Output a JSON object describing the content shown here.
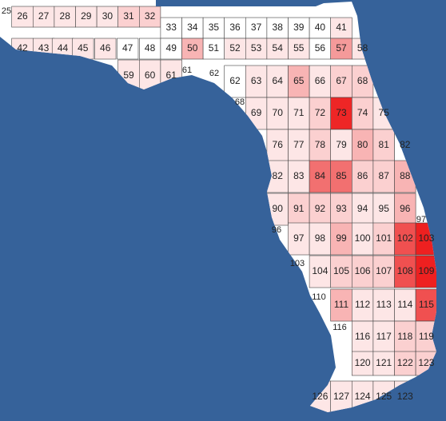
{
  "cells": [
    {
      "label": "25"
    },
    {
      "label": "26",
      "color": "#fde6e6"
    },
    {
      "label": "27",
      "color": "#fde6e6"
    },
    {
      "label": "28",
      "color": "#fde6e6"
    },
    {
      "label": "29",
      "color": "#fde6e6"
    },
    {
      "label": "30",
      "color": "#fde6e6"
    },
    {
      "label": "31",
      "color": "#fbd0d0"
    },
    {
      "label": "32",
      "color": "#fbd0d0"
    },
    {
      "label": "33",
      "color": "#ffffff"
    },
    {
      "label": "34",
      "color": "#ffffff"
    },
    {
      "label": "35",
      "color": "#ffffff"
    },
    {
      "label": "36",
      "color": "#ffffff"
    },
    {
      "label": "37",
      "color": "#ffffff"
    },
    {
      "label": "38",
      "color": "#ffffff"
    },
    {
      "label": "39",
      "color": "#ffffff"
    },
    {
      "label": "40",
      "color": "#ffffff"
    },
    {
      "label": "41",
      "color": "#fde6e6"
    },
    {
      "label": "42",
      "color": "#fde6e6"
    },
    {
      "label": "43",
      "color": "#fde6e6"
    },
    {
      "label": "44",
      "color": "#fde6e6"
    },
    {
      "label": "45",
      "color": "#fde6e6"
    },
    {
      "label": "46",
      "color": "#fde6e6"
    },
    {
      "label": "47",
      "color": "#ffffff"
    },
    {
      "label": "48",
      "color": "#ffffff"
    },
    {
      "label": "49",
      "color": "#ffffff"
    },
    {
      "label": "50",
      "color": "#f8b4b4"
    },
    {
      "label": "51",
      "color": "#ffffff"
    },
    {
      "label": "52",
      "color": "#fde6e6"
    },
    {
      "label": "53",
      "color": "#fde6e6"
    },
    {
      "label": "54",
      "color": "#fde6e6"
    },
    {
      "label": "55",
      "color": "#fde6e6"
    },
    {
      "label": "56",
      "color": "#ffffff"
    },
    {
      "label": "57",
      "color": "#f59a9a"
    },
    {
      "label": "58",
      "color": "#fde6e6"
    },
    {
      "label": "59",
      "color": "#fde6e6"
    },
    {
      "label": "60",
      "color": "#fde6e6"
    },
    {
      "label": "61",
      "color": "#fde6e6"
    },
    {
      "label": "61"
    },
    {
      "label": "62"
    },
    {
      "label": "62",
      "color": "#ffffff"
    },
    {
      "label": "63",
      "color": "#fde6e6"
    },
    {
      "label": "64",
      "color": "#fde6e6"
    },
    {
      "label": "65",
      "color": "#f8b4b4"
    },
    {
      "label": "66",
      "color": "#fde6e6"
    },
    {
      "label": "67",
      "color": "#fbd0d0"
    },
    {
      "label": "68",
      "color": "#fbd0d0"
    },
    {
      "label": "68"
    },
    {
      "label": "69",
      "color": "#fde6e6"
    },
    {
      "label": "70",
      "color": "#fde6e6"
    },
    {
      "label": "71",
      "color": "#fde6e6"
    },
    {
      "label": "72",
      "color": "#fbd0d0"
    },
    {
      "label": "73",
      "color": "#ee2626"
    },
    {
      "label": "74",
      "color": "#fbd0d0"
    },
    {
      "label": "75",
      "color": "#fde6e6"
    },
    {
      "label": "76",
      "color": "#fde6e6"
    },
    {
      "label": "77",
      "color": "#fde6e6"
    },
    {
      "label": "78",
      "color": "#fbd0d0"
    },
    {
      "label": "79",
      "color": "#fde6e6"
    },
    {
      "label": "80",
      "color": "#f8b4b4"
    },
    {
      "label": "81",
      "color": "#fbd0d0"
    },
    {
      "label": "82",
      "color": "#ffffff"
    },
    {
      "label": "82",
      "color": "#fde6e6"
    },
    {
      "label": "83",
      "color": "#fde6e6"
    },
    {
      "label": "84",
      "color": "#f27070"
    },
    {
      "label": "85",
      "color": "#f27070"
    },
    {
      "label": "86",
      "color": "#fbd0d0"
    },
    {
      "label": "87",
      "color": "#fbd0d0"
    },
    {
      "label": "88",
      "color": "#f8b4b4"
    },
    {
      "label": "90",
      "color": "#fde6e6"
    },
    {
      "label": "91",
      "color": "#fbd0d0"
    },
    {
      "label": "92",
      "color": "#fbd0d0"
    },
    {
      "label": "93",
      "color": "#fbd0d0"
    },
    {
      "label": "94",
      "color": "#fde6e6"
    },
    {
      "label": "95",
      "color": "#fde6e6"
    },
    {
      "label": "96",
      "color": "#f8b4b4"
    },
    {
      "label": "96"
    },
    {
      "label": "97"
    },
    {
      "label": "97",
      "color": "#fde6e6"
    },
    {
      "label": "98",
      "color": "#fde6e6"
    },
    {
      "label": "99",
      "color": "#f8b4b4"
    },
    {
      "label": "100",
      "color": "#fde6e6"
    },
    {
      "label": "101",
      "color": "#fbd0d0"
    },
    {
      "label": "102",
      "color": "#f05050"
    },
    {
      "label": "103",
      "color": "#ee2020"
    },
    {
      "label": "103"
    },
    {
      "label": "104",
      "color": "#fde6e6"
    },
    {
      "label": "105",
      "color": "#fbd0d0"
    },
    {
      "label": "106",
      "color": "#fbd0d0"
    },
    {
      "label": "107",
      "color": "#fbd0d0"
    },
    {
      "label": "108",
      "color": "#f05050"
    },
    {
      "label": "109",
      "color": "#ee2020"
    },
    {
      "label": "110"
    },
    {
      "label": "111",
      "color": "#f8b4b4"
    },
    {
      "label": "112",
      "color": "#fde6e6"
    },
    {
      "label": "113",
      "color": "#fde6e6"
    },
    {
      "label": "114",
      "color": "#fde6e6"
    },
    {
      "label": "115",
      "color": "#f05050"
    },
    {
      "label": "116"
    },
    {
      "label": "116",
      "color": "#fde6e6"
    },
    {
      "label": "117",
      "color": "#fde6e6"
    },
    {
      "label": "118",
      "color": "#fbd0d0"
    },
    {
      "label": "119",
      "color": "#fbd0d0"
    },
    {
      "label": "120",
      "color": "#fde6e6"
    },
    {
      "label": "121",
      "color": "#fde6e6"
    },
    {
      "label": "122",
      "color": "#fbd0d0"
    },
    {
      "label": "123",
      "color": "#fbd0d0"
    },
    {
      "label": "126",
      "color": "#fde6e6"
    },
    {
      "label": "127",
      "color": "#fde6e6"
    },
    {
      "label": "124",
      "color": "#fde6e6"
    },
    {
      "label": "125",
      "color": "#fde6e6"
    },
    {
      "label": "123",
      "color": "#fde6e6"
    }
  ]
}
